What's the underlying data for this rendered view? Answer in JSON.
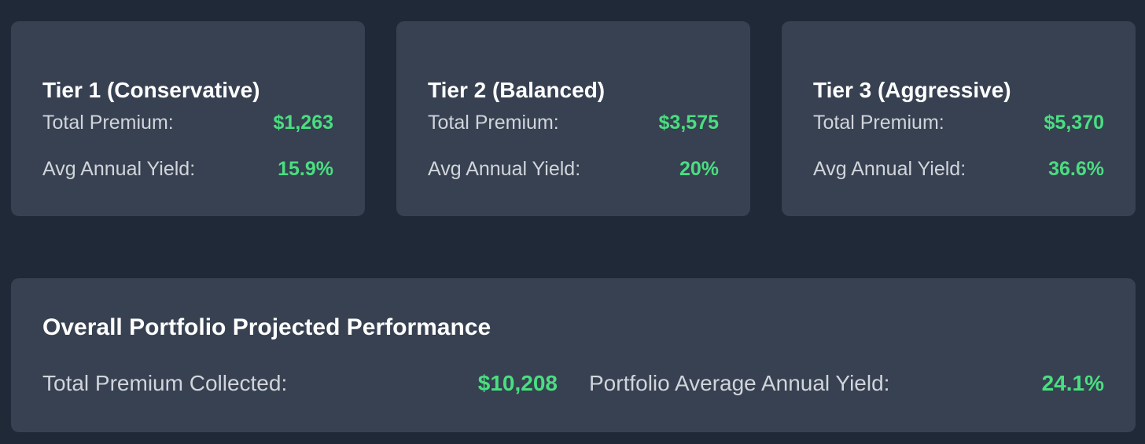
{
  "tiers": [
    {
      "title": "Tier 1 (Conservative)",
      "premium_label": "Total Premium:",
      "premium_value": "$1,263",
      "yield_label": "Avg Annual Yield:",
      "yield_value": "15.9%"
    },
    {
      "title": "Tier 2 (Balanced)",
      "premium_label": "Total Premium:",
      "premium_value": "$3,575",
      "yield_label": "Avg Annual Yield:",
      "yield_value": "20%"
    },
    {
      "title": "Tier 3 (Aggressive)",
      "premium_label": "Total Premium:",
      "premium_value": "$5,370",
      "yield_label": "Avg Annual Yield:",
      "yield_value": "36.6%"
    }
  ],
  "overall": {
    "title": "Overall Portfolio Projected Performance",
    "premium_label": "Total Premium Collected:",
    "premium_value": "$10,208",
    "yield_label": "Portfolio Average Annual Yield:",
    "yield_value": "24.1%"
  },
  "colors": {
    "background": "#1f2937",
    "card": "#374151",
    "value_green": "#4ade80",
    "label": "#d1d5db",
    "title": "#ffffff"
  }
}
